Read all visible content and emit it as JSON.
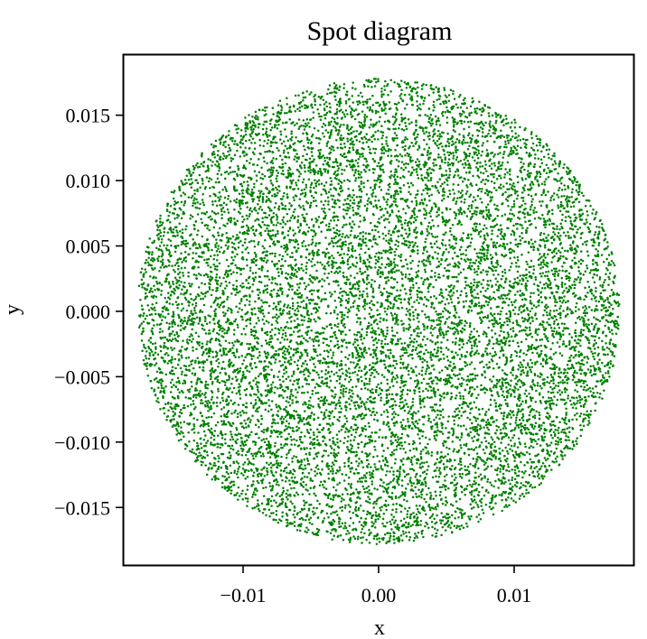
{
  "chart_data": {
    "type": "scatter",
    "title": "Spot diagram",
    "xlabel": "x",
    "ylabel": "y",
    "xlim": [
      -0.0188,
      0.0188
    ],
    "ylim": [
      -0.0194,
      0.0196
    ],
    "x_ticks": [
      -0.01,
      0.0,
      0.01
    ],
    "x_tick_labels": [
      "−0.01",
      "0.00",
      "0.01"
    ],
    "y_ticks": [
      -0.015,
      -0.01,
      -0.005,
      0.0,
      0.005,
      0.01,
      0.015
    ],
    "y_tick_labels": [
      "−0.015",
      "−0.010",
      "−0.005",
      "0.000",
      "0.005",
      "0.010",
      "0.015"
    ],
    "grid": false,
    "series": [
      {
        "color": "#008000",
        "distribution": "uniform-disk",
        "center": [
          0.0,
          0.0
        ],
        "radius": 0.0178,
        "point_count": 12000
      }
    ]
  }
}
